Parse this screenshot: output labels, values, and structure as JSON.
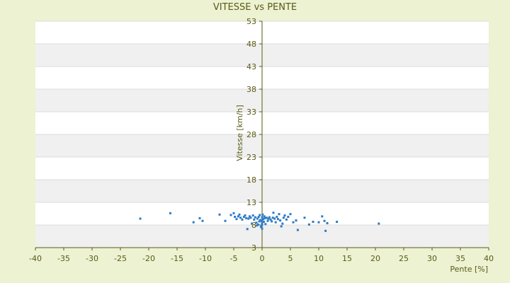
{
  "chart_data": {
    "type": "scatter",
    "title": "VITESSE vs PENTE",
    "xlabel": "Pente [%]",
    "ylabel": "Vitesse [km/h]",
    "xlim": [
      -40,
      40
    ],
    "ylim": [
      3,
      53
    ],
    "x_ticks": [
      -40,
      -35,
      -30,
      -25,
      -20,
      -15,
      -10,
      -5,
      0,
      5,
      10,
      15,
      20,
      25,
      30,
      35,
      40
    ],
    "y_ticks": [
      3,
      8,
      13,
      18,
      23,
      28,
      33,
      38,
      43,
      48,
      53
    ],
    "grid": true,
    "legend": "none",
    "colors": {
      "point": "#2e7bc4",
      "band": "#f0f0f0",
      "plot_bg": "#ffffff",
      "axis": "#5a5a16",
      "background": "#ecf2d2"
    },
    "series": [
      {
        "points": [
          [
            -21.5,
            9.4
          ],
          [
            -16.2,
            10.6
          ],
          [
            -12.1,
            8.6
          ],
          [
            -11.0,
            9.5
          ],
          [
            -10.5,
            8.9
          ],
          [
            -7.5,
            10.3
          ],
          [
            -6.5,
            8.9
          ],
          [
            -5.5,
            10.2
          ],
          [
            -5.0,
            10.6
          ],
          [
            -4.8,
            9.8
          ],
          [
            -4.5,
            9.3
          ],
          [
            -4.2,
            9.9
          ],
          [
            -4.0,
            10.3
          ],
          [
            -3.8,
            9.6
          ],
          [
            -3.5,
            9.2
          ],
          [
            -3.2,
            9.8
          ],
          [
            -3.0,
            10.1
          ],
          [
            -2.8,
            9.5
          ],
          [
            -2.6,
            7.1
          ],
          [
            -2.4,
            9.4
          ],
          [
            -2.2,
            9.9
          ],
          [
            -2.0,
            9.6
          ],
          [
            -1.8,
            8.3
          ],
          [
            -1.6,
            10.1
          ],
          [
            -1.4,
            9.2
          ],
          [
            -1.2,
            9.7
          ],
          [
            -1.0,
            8.5
          ],
          [
            -0.9,
            7.9
          ],
          [
            -0.8,
            9.4
          ],
          [
            -0.7,
            8.1
          ],
          [
            -0.6,
            9.8
          ],
          [
            -0.5,
            8.8
          ],
          [
            -0.4,
            10.2
          ],
          [
            -0.3,
            9.1
          ],
          [
            -0.2,
            7.6
          ],
          [
            -0.1,
            8.9
          ],
          [
            0.0,
            7.2
          ],
          [
            0.0,
            8.0
          ],
          [
            0.0,
            8.4
          ],
          [
            0.0,
            9.0
          ],
          [
            0.0,
            9.7
          ],
          [
            0.1,
            10.3
          ],
          [
            0.2,
            9.3
          ],
          [
            0.3,
            8.7
          ],
          [
            0.4,
            9.9
          ],
          [
            0.5,
            9.5
          ],
          [
            0.6,
            8.2
          ],
          [
            0.8,
            9.6
          ],
          [
            1.0,
            8.9
          ],
          [
            1.1,
            9.4
          ],
          [
            1.3,
            9.7
          ],
          [
            1.5,
            9.2
          ],
          [
            1.7,
            8.8
          ],
          [
            1.9,
            9.6
          ],
          [
            2.0,
            10.7
          ],
          [
            2.2,
            9.4
          ],
          [
            2.4,
            8.6
          ],
          [
            2.6,
            9.8
          ],
          [
            2.8,
            9.3
          ],
          [
            3.0,
            10.4
          ],
          [
            3.2,
            9.0
          ],
          [
            3.4,
            7.7
          ],
          [
            3.6,
            8.3
          ],
          [
            3.8,
            9.6
          ],
          [
            4.0,
            10.1
          ],
          [
            4.3,
            9.2
          ],
          [
            4.6,
            9.8
          ],
          [
            5.0,
            10.4
          ],
          [
            5.5,
            8.6
          ],
          [
            6.0,
            9.0
          ],
          [
            6.3,
            6.9
          ],
          [
            7.5,
            9.6
          ],
          [
            8.3,
            8.1
          ],
          [
            9.0,
            8.7
          ],
          [
            10.0,
            8.6
          ],
          [
            10.6,
            9.9
          ],
          [
            11.0,
            8.9
          ],
          [
            11.2,
            6.7
          ],
          [
            11.5,
            8.4
          ],
          [
            13.2,
            8.7
          ],
          [
            20.6,
            8.3
          ]
        ]
      }
    ]
  }
}
